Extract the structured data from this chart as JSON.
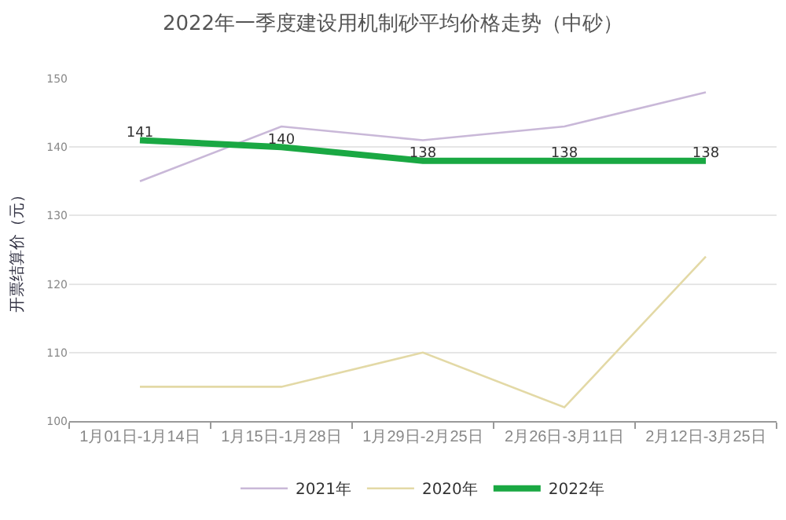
{
  "chart_data": {
    "type": "line",
    "title": "2022年一季度建设用机制砂平均价格走势（中砂）",
    "ylabel": "开票结算价（元）",
    "categories": [
      "1月01日-1月14日",
      "1月15日-1月28日",
      "1月29日-2月25日",
      "2月26日-3月11日",
      "2月12日-3月25日"
    ],
    "series": [
      {
        "name": "2021年",
        "color": "#c9b8d8",
        "values": [
          135,
          143,
          141,
          143,
          148
        ]
      },
      {
        "name": "2020年",
        "color": "#e3d9a6",
        "values": [
          105,
          105,
          110,
          102,
          124
        ]
      },
      {
        "name": "2022年",
        "color": "#1aa843",
        "values": [
          141,
          140,
          138,
          138,
          138
        ],
        "data_labels": true
      }
    ],
    "ylim": [
      100,
      150
    ],
    "yticks": [
      100,
      110,
      120,
      130,
      140,
      150
    ],
    "grid": "y",
    "legend": "bottom",
    "marker": "none",
    "line_style": "solid"
  }
}
